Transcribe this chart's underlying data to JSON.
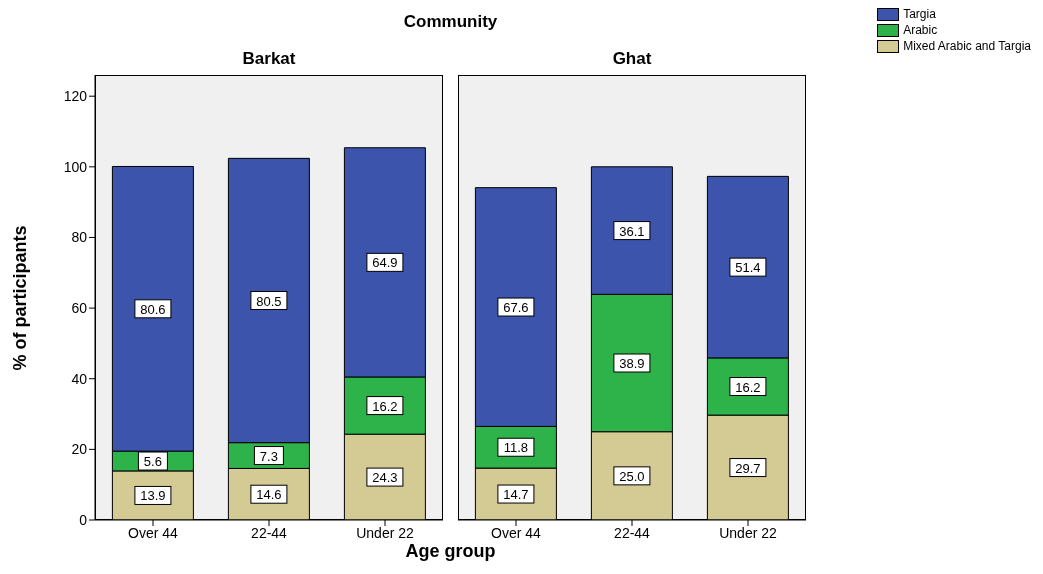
{
  "chart_data": [
    {
      "type": "bar",
      "title": "Barkat",
      "annotations": [
        "Community"
      ],
      "xlabel": "Age group",
      "ylabel": "% of participants",
      "categories": [
        "Over 44",
        "22-44",
        "Under 22"
      ],
      "stacked": true,
      "ylim": [
        0,
        126
      ],
      "yticks": [
        0,
        20,
        40,
        60,
        80,
        100,
        120
      ],
      "grid": false,
      "legend": "top right",
      "data_labels": true,
      "series": [
        {
          "name": "Mixed Arabic and Targia",
          "color": "#d4ca94",
          "values": [
            13.9,
            14.6,
            24.3
          ],
          "value_labels": [
            "13.9",
            "14.6",
            "24.3"
          ]
        },
        {
          "name": "Arabic",
          "color": "#2db34a",
          "values": [
            5.6,
            7.3,
            16.2
          ],
          "value_labels": [
            "5.6",
            "7.3",
            "16.2"
          ]
        },
        {
          "name": "Targia",
          "color": "#3c54ac",
          "values": [
            80.6,
            80.5,
            64.9
          ],
          "value_labels": [
            "80.6",
            "80.5",
            "64.9"
          ]
        }
      ]
    },
    {
      "type": "bar",
      "title": "Ghat",
      "categories": [
        "Over 44",
        "22-44",
        "Under 22"
      ],
      "stacked": true,
      "ylim": [
        0,
        126
      ],
      "tick_labels": "x",
      "grid": false,
      "data_labels": true,
      "series": [
        {
          "color": "#d4ca94",
          "values": [
            14.7,
            25.0,
            29.7
          ],
          "value_labels": [
            "14.7",
            "25.0",
            "29.7"
          ]
        },
        {
          "color": "#2db34a",
          "values": [
            11.8,
            38.9,
            16.2
          ],
          "value_labels": [
            "11.8",
            "38.9",
            "16.2"
          ]
        },
        {
          "color": "#3c54ac",
          "values": [
            67.6,
            36.1,
            51.4
          ],
          "value_labels": [
            "67.6",
            "36.1",
            "51.4"
          ]
        }
      ]
    }
  ]
}
